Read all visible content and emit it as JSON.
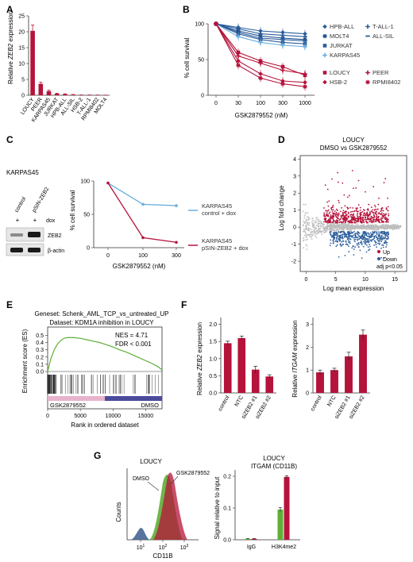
{
  "panels": {
    "A": {
      "letter": "A",
      "ylabel_pre": "Relative ",
      "ylabel_gene": "ZEB2",
      "ylabel_post": " expression",
      "yticks": [
        "0",
        "5",
        "10",
        "15",
        "20",
        "25"
      ],
      "chart_data": {
        "type": "bar",
        "categories": [
          "LOUCY",
          "PEER",
          "KARPAS45",
          "JURKAT",
          "HPB-ALL",
          "ALL-SIL",
          "HSB-2",
          "T-ALL-1",
          "RPMI8402",
          "MOLT4"
        ],
        "values": [
          20.3,
          3.6,
          1.3,
          0.5,
          0.35,
          0.2,
          0.1,
          0.08,
          0.06,
          0.04
        ],
        "errors": [
          1.8,
          0.5,
          0.3,
          0.1,
          0.1,
          0.05,
          0.02,
          0.02,
          0.02,
          0.01
        ],
        "ylim": [
          0,
          25
        ],
        "color": "#b5133b"
      }
    },
    "B": {
      "letter": "B",
      "ylabel": "% cell survival",
      "xlabel": "GSK2879552   (nM)",
      "yticks": [
        "0",
        "50",
        "100"
      ],
      "xticks": [
        "0",
        "30",
        "100",
        "300",
        "1000"
      ],
      "legend": [
        {
          "name": "HPB-ALL",
          "color": "#2b5d9c",
          "marker": "diamond"
        },
        {
          "name": "T-ALL-1",
          "color": "#2b5d9c",
          "marker": "cross"
        },
        {
          "name": "MOLT4",
          "color": "#1f4e8a",
          "marker": "star"
        },
        {
          "name": "ALL-SIL",
          "color": "#2b5d9c",
          "marker": "dash"
        },
        {
          "name": "JURKAT",
          "color": "#2b5d9c",
          "marker": "square"
        },
        {
          "name": "KARPAS45",
          "color": "#6aaddd",
          "marker": "cross"
        },
        {
          "name": "LOUCY",
          "color": "#b5133b",
          "marker": "square"
        },
        {
          "name": "PEER",
          "color": "#b5133b",
          "marker": "cross"
        },
        {
          "name": "HSB-2",
          "color": "#b5133b",
          "marker": "diamond"
        },
        {
          "name": "RPMI8402",
          "color": "#b5133b",
          "marker": "star"
        }
      ],
      "chart_data": {
        "type": "line",
        "x": [
          "0",
          "30",
          "100",
          "300",
          "1000"
        ],
        "ylim": [
          0,
          100
        ],
        "series": [
          {
            "name": "HPB-ALL",
            "values": [
              100,
              95,
              90,
              88,
              86
            ],
            "color": "#2b5d9c"
          },
          {
            "name": "T-ALL-1",
            "values": [
              100,
              93,
              86,
              84,
              82
            ],
            "color": "#2b5d9c"
          },
          {
            "name": "MOLT4",
            "values": [
              100,
              90,
              83,
              80,
              78
            ],
            "color": "#1f4e8a"
          },
          {
            "name": "ALL-SIL",
            "values": [
              100,
              88,
              80,
              78,
              76
            ],
            "color": "#2b5d9c"
          },
          {
            "name": "JURKAT",
            "values": [
              100,
              86,
              78,
              74,
              72
            ],
            "color": "#2b5d9c"
          },
          {
            "name": "KARPAS45",
            "values": [
              100,
              82,
              74,
              70,
              68
            ],
            "color": "#6aaddd"
          },
          {
            "name": "LOUCY",
            "values": [
              100,
              60,
              48,
              40,
              28
            ],
            "color": "#b5133b"
          },
          {
            "name": "PEER",
            "values": [
              100,
              55,
              45,
              35,
              30
            ],
            "color": "#b5133b"
          },
          {
            "name": "HSB-2",
            "values": [
              100,
              48,
              30,
              20,
              18
            ],
            "color": "#b5133b"
          },
          {
            "name": "RPMI8402",
            "values": [
              100,
              42,
              24,
              16,
              12
            ],
            "color": "#b5133b"
          }
        ]
      }
    },
    "C": {
      "letter": "C",
      "cell_line": "KARPAS45",
      "blot_header_control": "control",
      "blot_header_zeb": "pSIN-ZEB2",
      "dox_plus1": "+",
      "dox_plus2": "+",
      "dox_label": "dox",
      "band1": "ZEB2",
      "band2": "β-actin",
      "ylabel": "% cell survival",
      "xlabel": "GSK2879552   (nM)",
      "yticks": [
        "0",
        "50",
        "100"
      ],
      "xticks": [
        "0",
        "100",
        "300"
      ],
      "legend1_line1": "KARPAS45",
      "legend1_line2": "control + dox",
      "legend2_line1": "KARPAS45",
      "legend2_line2": "pSIN-ZEB2 + dox",
      "chart_data": {
        "type": "line",
        "x": [
          "0",
          "100",
          "300"
        ],
        "ylim": [
          0,
          100
        ],
        "series": [
          {
            "name": "KARPAS45 control + dox",
            "values": [
              97,
              65,
              63
            ],
            "color": "#6aaddd"
          },
          {
            "name": "KARPAS45 pSIN-ZEB2 + dox",
            "values": [
              97,
              15,
              8
            ],
            "color": "#b5133b"
          }
        ]
      }
    },
    "D": {
      "letter": "D",
      "title1": "LOUCY",
      "title2": "DMSO vs GSK2879552",
      "ylabel": "Log fold change",
      "xlabel": "Log mean expression",
      "yticks": [
        "-2",
        "-1",
        "0",
        "1",
        "2",
        "3",
        "4"
      ],
      "xticks": [
        "0",
        "5",
        "10",
        "15"
      ],
      "legend_up": "Up",
      "legend_down": "Down",
      "legend_adj": "adj p<0.05",
      "chart_data": {
        "type": "scatter",
        "xlim": [
          -1,
          17
        ],
        "ylim": [
          -2.6,
          4.2
        ],
        "series": [
          {
            "name": "Up",
            "color": "#b5133b"
          },
          {
            "name": "Down",
            "color": "#2b5d9c"
          }
        ]
      }
    },
    "E": {
      "letter": "E",
      "geneset": "Geneset: Schenk_AML_TCP_vs_untreated_UP",
      "dataset": "Dataset: KDM1A inhibition in LOUCY",
      "nes": "NES = 4.71",
      "fdr": "FDR < 0.001",
      "ylabel": "Enrichment score (ES)",
      "xlabel": "Rank in ordered dataset",
      "yticks": [
        "0.0",
        "0.1",
        "0.2",
        "0.3",
        "0.4",
        "0.5"
      ],
      "xticks": [
        "0",
        "5000",
        "10000",
        "15000"
      ],
      "bar_left": "GSK2879552",
      "bar_right": "DMSO",
      "chart_data": {
        "type": "line",
        "x": [
          0,
          500,
          1000,
          1500,
          2000,
          2500,
          3000,
          4000,
          5000,
          6000,
          7000,
          8000,
          9000,
          10000,
          11000,
          12000,
          13000,
          14000,
          15000,
          16000,
          17000,
          17500
        ],
        "values": [
          0,
          0.18,
          0.3,
          0.38,
          0.43,
          0.46,
          0.47,
          0.47,
          0.46,
          0.44,
          0.42,
          0.4,
          0.37,
          0.34,
          0.3,
          0.27,
          0.23,
          0.19,
          0.15,
          0.11,
          0.06,
          0.02
        ],
        "ylim": [
          0,
          0.55
        ],
        "xlim": [
          0,
          17500
        ],
        "color": "#5fae36"
      }
    },
    "F": {
      "letter": "F",
      "left_ylabel_pre": "Relative ",
      "left_ylabel_gene": "ZEB2",
      "left_ylabel_post": " expression",
      "right_ylabel_pre": "Relative ",
      "right_ylabel_gene": "ITGAM",
      "right_ylabel_post": " expression",
      "left_yticks": [
        "0.0",
        "0.5",
        "1.0",
        "1.5",
        "2.0"
      ],
      "right_yticks": [
        "0",
        "1",
        "2",
        "3"
      ],
      "chart_data": [
        {
          "type": "bar",
          "categories": [
            "control",
            "NTC",
            "siZEB2 #1",
            "siZEB2 #2"
          ],
          "values": [
            1.45,
            1.6,
            0.68,
            0.48
          ],
          "errors": [
            0.06,
            0.06,
            0.1,
            0.05
          ],
          "ylim": [
            0,
            2.2
          ],
          "color": "#b5133b"
        },
        {
          "type": "bar",
          "categories": [
            "control",
            "NTC",
            "siZEB2 #1",
            "siZEB2 #2"
          ],
          "values": [
            0.9,
            1.0,
            1.6,
            2.55
          ],
          "errors": [
            0.1,
            0.08,
            0.18,
            0.2
          ],
          "ylim": [
            0,
            3.3
          ],
          "color": "#b5133b"
        }
      ]
    },
    "G": {
      "letter": "G",
      "left_title": "LOUCY",
      "left_ylabel": "Counts",
      "left_xlabel": "CD11B",
      "label_dmso": "DMSO",
      "label_gsk": "GSK2879552",
      "xtick1": "10",
      "xtick1_exp": "1",
      "xtick2": "10",
      "xtick2_exp": "2",
      "xtick3": "10",
      "xtick3_exp": "3",
      "right_title1": "LOUCY",
      "right_title2": "ITGAM (CD11B)",
      "right_ylabel": "Signal relative to input",
      "right_yticks": [
        "0.0",
        "0.1",
        "0.2"
      ],
      "chart_data": {
        "type": "bar",
        "categories": [
          "IgG",
          "H3K4me2"
        ],
        "series": [
          {
            "name": "DMSO",
            "values": [
              0.003,
              0.095
            ],
            "color": "#5fae36"
          },
          {
            "name": "GSK2879552",
            "values": [
              0.003,
              0.198
            ],
            "color": "#b5133b"
          }
        ],
        "errors": [
          [
            0.001,
            0.006
          ],
          [
            0.001,
            0.004
          ]
        ],
        "ylim": [
          0,
          0.22
        ]
      }
    }
  }
}
